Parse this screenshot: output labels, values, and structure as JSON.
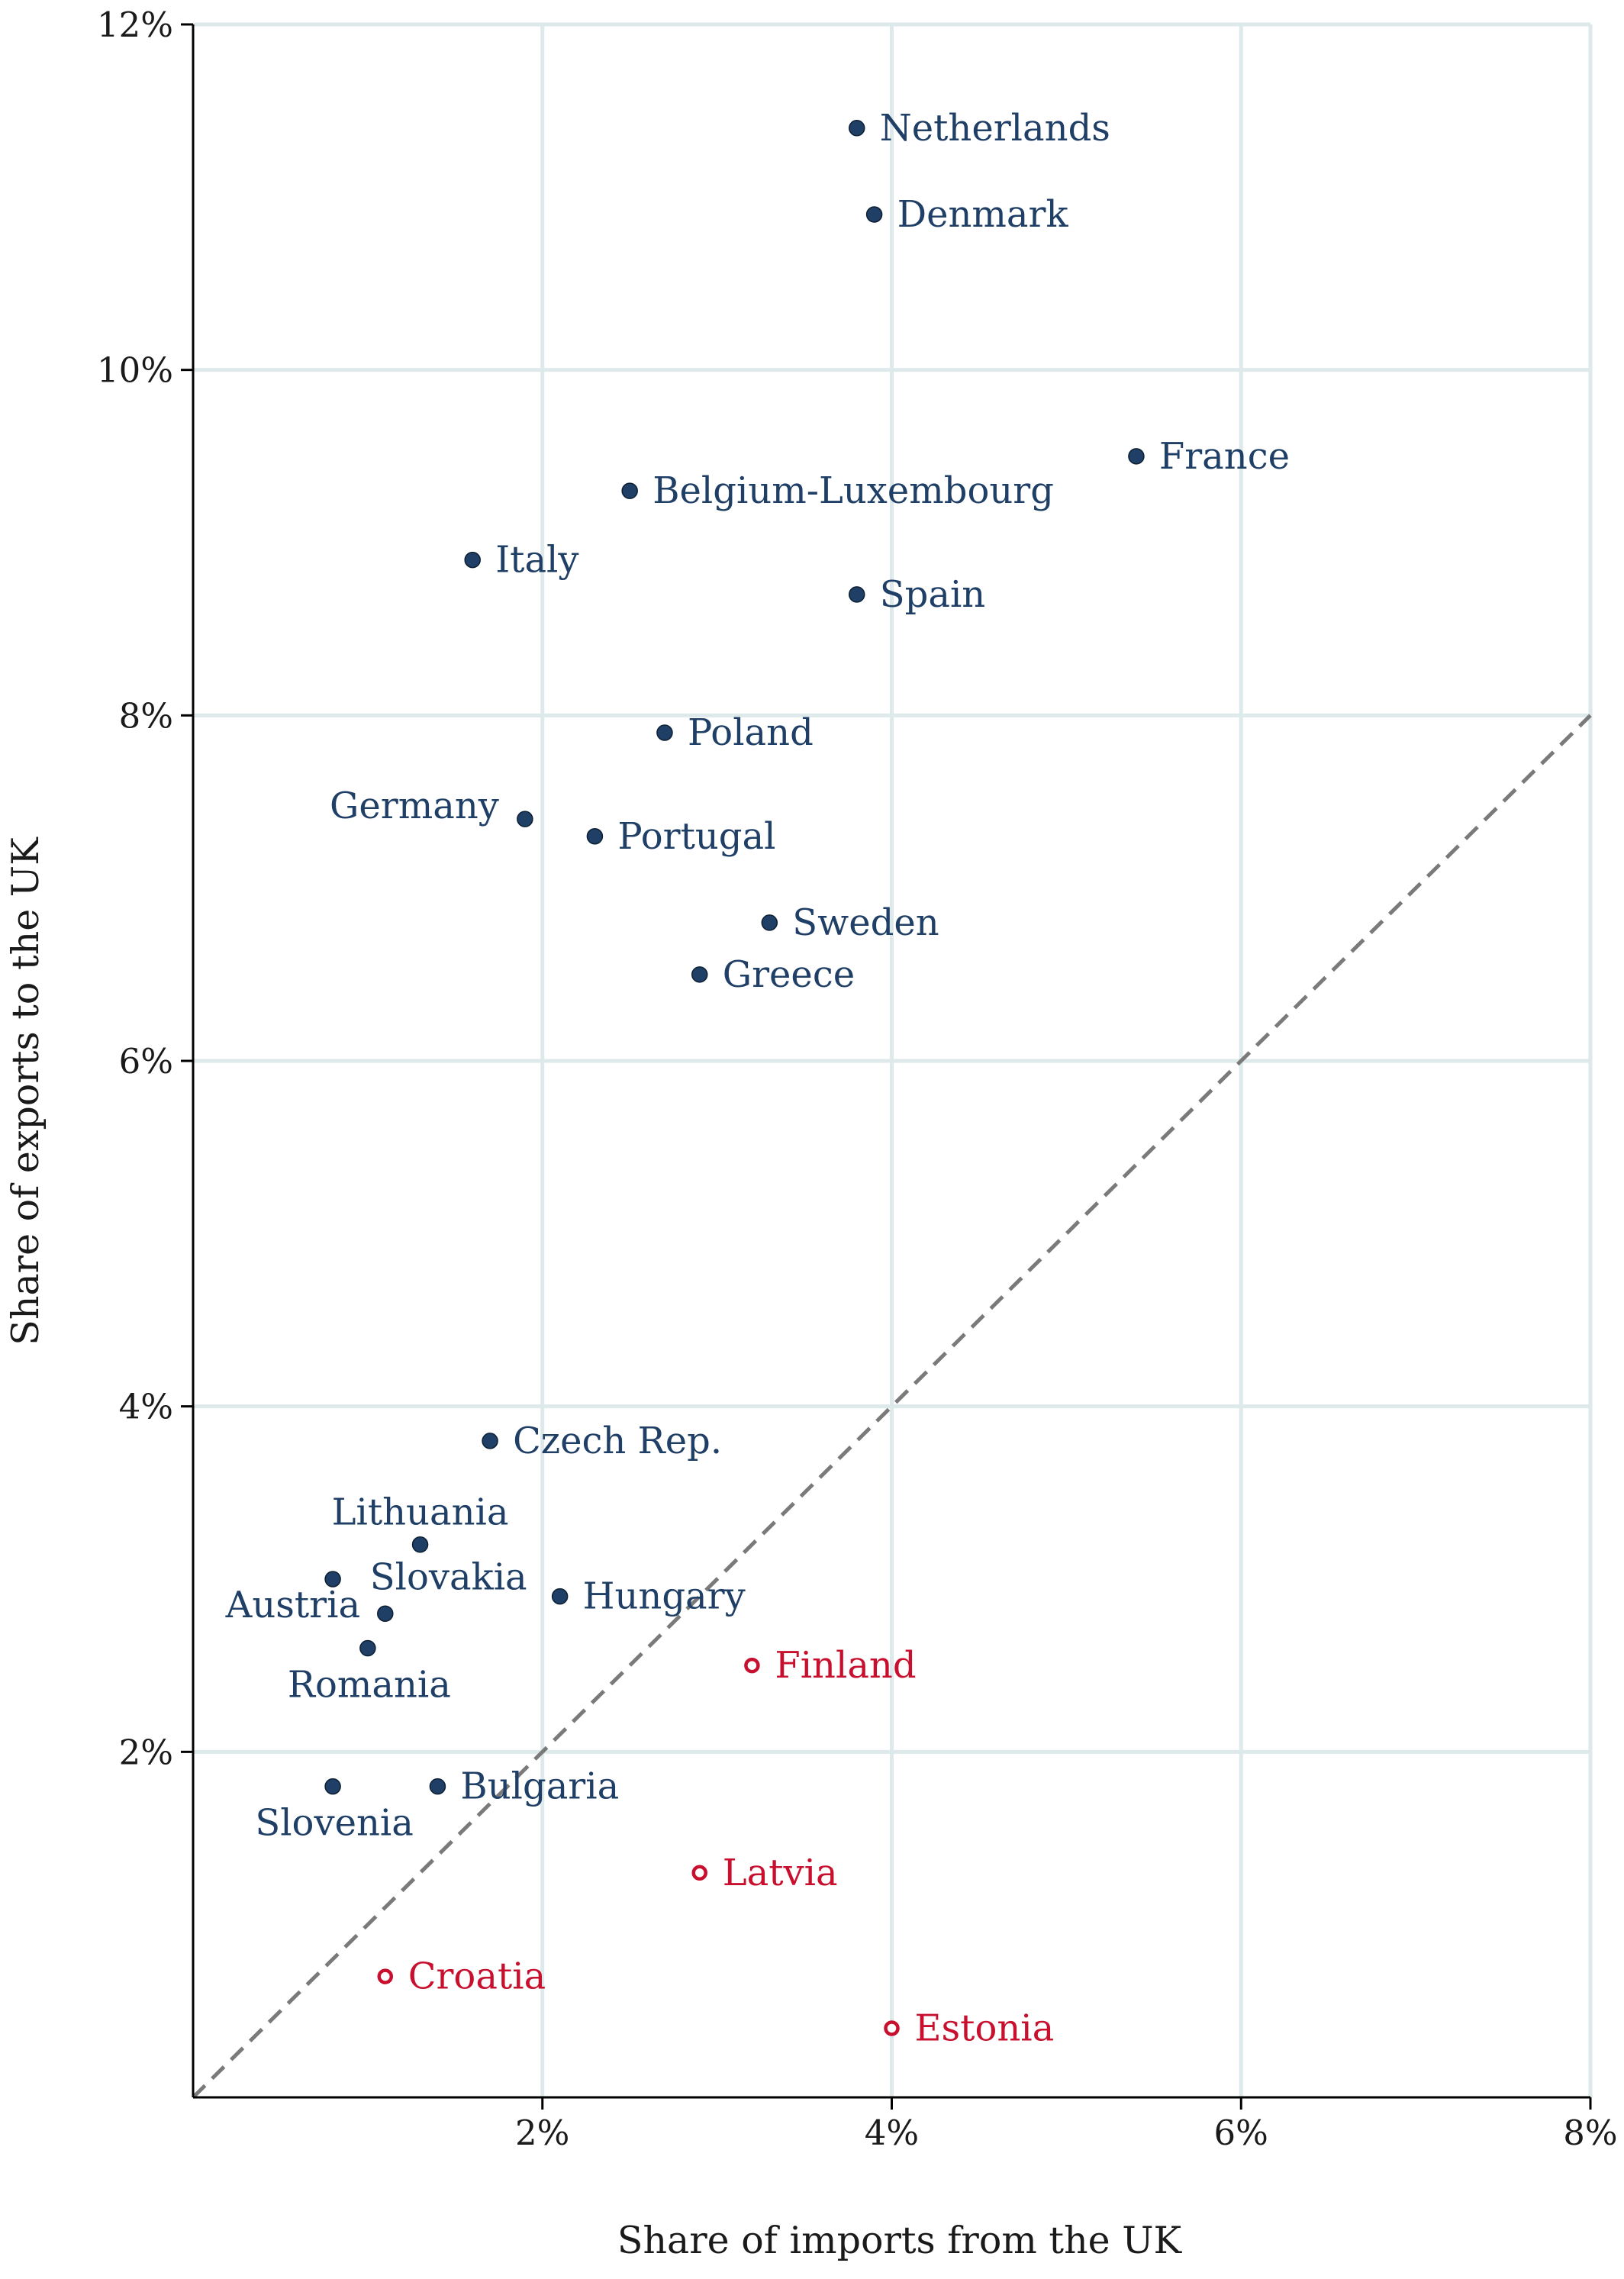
{
  "chart_data": {
    "type": "scatter",
    "title": "",
    "xlabel": "Share of imports from the UK",
    "ylabel": "Share of exports to the UK",
    "xlim": [
      0,
      8
    ],
    "ylim": [
      0,
      12
    ],
    "x_ticks": [
      {
        "value": 2,
        "label": "2%"
      },
      {
        "value": 4,
        "label": "4%"
      },
      {
        "value": 6,
        "label": "6%"
      },
      {
        "value": 8,
        "label": "8%"
      }
    ],
    "y_ticks": [
      {
        "value": 2,
        "label": "2%"
      },
      {
        "value": 4,
        "label": "4%"
      },
      {
        "value": 6,
        "label": "6%"
      },
      {
        "value": 8,
        "label": "8%"
      },
      {
        "value": 10,
        "label": "10%"
      },
      {
        "value": 12,
        "label": "12%"
      }
    ],
    "grid": true,
    "reference_line": {
      "type": "45-degree",
      "style": "dashed",
      "color": "#7a7a7a"
    },
    "colors": {
      "surplus": "#1f3f66",
      "deficit": "#c8102e"
    },
    "points": [
      {
        "name": "Netherlands",
        "x": 3.8,
        "y": 11.4,
        "group": "surplus",
        "label_pos": "right"
      },
      {
        "name": "Denmark",
        "x": 3.9,
        "y": 10.9,
        "group": "surplus",
        "label_pos": "right"
      },
      {
        "name": "France",
        "x": 5.4,
        "y": 9.5,
        "group": "surplus",
        "label_pos": "right"
      },
      {
        "name": "Belgium-Luxembourg",
        "x": 2.5,
        "y": 9.3,
        "group": "surplus",
        "label_pos": "right"
      },
      {
        "name": "Italy",
        "x": 1.6,
        "y": 8.9,
        "group": "surplus",
        "label_pos": "right"
      },
      {
        "name": "Spain",
        "x": 3.8,
        "y": 8.7,
        "group": "surplus",
        "label_pos": "right"
      },
      {
        "name": "Poland",
        "x": 2.7,
        "y": 7.9,
        "group": "surplus",
        "label_pos": "right"
      },
      {
        "name": "Germany",
        "x": 1.9,
        "y": 7.4,
        "group": "surplus",
        "label_pos": "left"
      },
      {
        "name": "Portugal",
        "x": 2.3,
        "y": 7.3,
        "group": "surplus",
        "label_pos": "right"
      },
      {
        "name": "Sweden",
        "x": 3.3,
        "y": 6.8,
        "group": "surplus",
        "label_pos": "right"
      },
      {
        "name": "Greece",
        "x": 2.9,
        "y": 6.5,
        "group": "surplus",
        "label_pos": "right"
      },
      {
        "name": "Czech Rep.",
        "x": 1.7,
        "y": 3.8,
        "group": "surplus",
        "label_pos": "right"
      },
      {
        "name": "Lithuania",
        "x": 1.3,
        "y": 3.2,
        "group": "surplus",
        "label_pos": "above"
      },
      {
        "name": "Austria",
        "x": 0.8,
        "y": 3.0,
        "group": "surplus",
        "label_pos": "below-left"
      },
      {
        "name": "Slovakia",
        "x": 1.1,
        "y": 2.8,
        "group": "surplus",
        "label_pos": "above-right"
      },
      {
        "name": "Hungary",
        "x": 2.1,
        "y": 2.9,
        "group": "surplus",
        "label_pos": "right"
      },
      {
        "name": "Romania",
        "x": 1.0,
        "y": 2.6,
        "group": "surplus",
        "label_pos": "below"
      },
      {
        "name": "Finland",
        "x": 3.2,
        "y": 2.5,
        "group": "deficit",
        "label_pos": "right"
      },
      {
        "name": "Slovenia",
        "x": 0.8,
        "y": 1.8,
        "group": "surplus",
        "label_pos": "below"
      },
      {
        "name": "Bulgaria",
        "x": 1.4,
        "y": 1.8,
        "group": "surplus",
        "label_pos": "right"
      },
      {
        "name": "Latvia",
        "x": 2.9,
        "y": 1.3,
        "group": "deficit",
        "label_pos": "right"
      },
      {
        "name": "Croatia",
        "x": 1.1,
        "y": 0.7,
        "group": "deficit",
        "label_pos": "right"
      },
      {
        "name": "Estonia",
        "x": 4.0,
        "y": 0.4,
        "group": "deficit",
        "label_pos": "right"
      }
    ]
  }
}
